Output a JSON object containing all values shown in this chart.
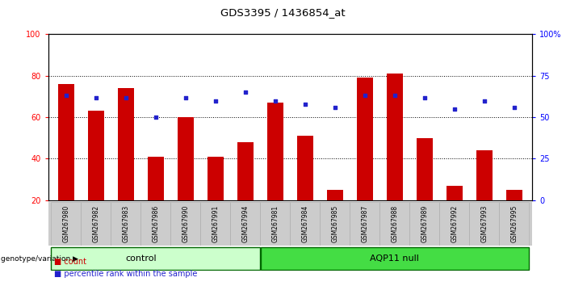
{
  "title": "GDS3395 / 1436854_at",
  "samples": [
    "GSM267980",
    "GSM267982",
    "GSM267983",
    "GSM267986",
    "GSM267990",
    "GSM267991",
    "GSM267994",
    "GSM267981",
    "GSM267984",
    "GSM267985",
    "GSM267987",
    "GSM267988",
    "GSM267989",
    "GSM267992",
    "GSM267993",
    "GSM267995"
  ],
  "counts": [
    76,
    63,
    74,
    41,
    60,
    41,
    48,
    67,
    51,
    25,
    79,
    81,
    50,
    27,
    44,
    25
  ],
  "percentile_ranks": [
    63,
    62,
    62,
    50,
    62,
    60,
    65,
    60,
    58,
    56,
    63,
    63,
    62,
    55,
    60,
    56
  ],
  "control_count": 7,
  "ylim_left": [
    20,
    100
  ],
  "ylim_right": [
    0,
    100
  ],
  "yticks_left": [
    20,
    40,
    60,
    80,
    100
  ],
  "yticks_right": [
    0,
    25,
    50,
    75,
    100
  ],
  "bar_color": "#cc0000",
  "dot_color": "#2222cc",
  "control_bg": "#ccffcc",
  "aqp11_bg": "#44dd44",
  "xlabel_tick_bg": "#cccccc",
  "bar_width": 0.55,
  "legend_count_label": "count",
  "legend_pct_label": "percentile rank within the sample",
  "group_label": "genotype/variation"
}
